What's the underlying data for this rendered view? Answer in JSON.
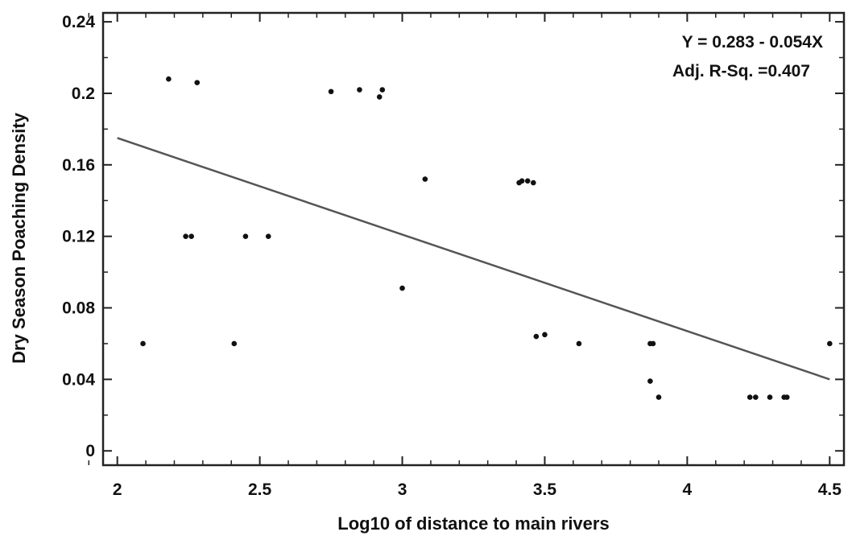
{
  "chart_data": {
    "type": "scatter",
    "title": "",
    "xlabel": "Log10 of distance to main rivers",
    "ylabel": "Dry Season Poaching Density",
    "xlim": [
      1.95,
      4.55
    ],
    "ylim": [
      -0.008,
      0.245
    ],
    "xticks": [
      2,
      2.5,
      3,
      3.5,
      4,
      4.5
    ],
    "xtick_labels": [
      "2",
      "2.5",
      "3",
      "3.5",
      "4",
      "4.5"
    ],
    "yticks": [
      0,
      0.04,
      0.08,
      0.12,
      0.16,
      0.2,
      0.24
    ],
    "ytick_labels": [
      "0",
      "0.04",
      "0.08",
      "0.12",
      "0.16",
      "0.2",
      "0.24"
    ],
    "grid": false,
    "series": [
      {
        "points": [
          [
            2.09,
            0.06
          ],
          [
            2.18,
            0.208
          ],
          [
            2.28,
            0.206
          ],
          [
            2.24,
            0.12
          ],
          [
            2.26,
            0.12
          ],
          [
            2.41,
            0.06
          ],
          [
            2.45,
            0.12
          ],
          [
            2.53,
            0.12
          ],
          [
            2.75,
            0.201
          ],
          [
            2.85,
            0.202
          ],
          [
            2.92,
            0.198
          ],
          [
            2.93,
            0.202
          ],
          [
            3.0,
            0.091
          ],
          [
            3.08,
            0.152
          ],
          [
            3.41,
            0.15
          ],
          [
            3.42,
            0.151
          ],
          [
            3.44,
            0.151
          ],
          [
            3.46,
            0.15
          ],
          [
            3.47,
            0.064
          ],
          [
            3.5,
            0.065
          ],
          [
            3.62,
            0.06
          ],
          [
            3.87,
            0.06
          ],
          [
            3.88,
            0.06
          ],
          [
            3.87,
            0.039
          ],
          [
            3.9,
            0.03
          ],
          [
            4.22,
            0.03
          ],
          [
            4.24,
            0.03
          ],
          [
            4.29,
            0.03
          ],
          [
            4.34,
            0.03
          ],
          [
            4.35,
            0.03
          ],
          [
            4.5,
            0.06
          ]
        ]
      }
    ],
    "regression_line": {
      "intercept": 0.283,
      "slope": -0.054,
      "x_range": [
        2,
        4.5
      ]
    },
    "annotations": [
      "Y = 0.283 - 0.054X",
      "Adj. R-Sq. =0.407"
    ]
  }
}
